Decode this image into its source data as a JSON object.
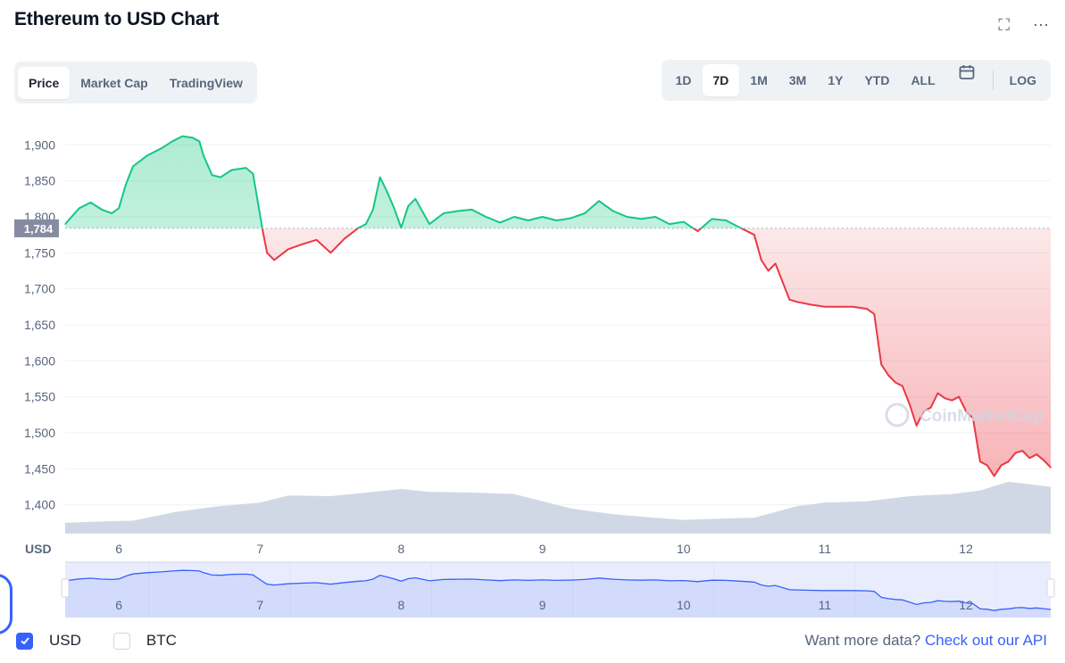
{
  "header": {
    "title": "Ethereum to USD Chart",
    "expand_icon": "expand-icon",
    "more_icon": "more-icon"
  },
  "tabs": [
    "Price",
    "Market Cap",
    "TradingView"
  ],
  "active_tab": "Price",
  "ranges": [
    "1D",
    "7D",
    "1M",
    "3M",
    "1Y",
    "YTD",
    "ALL"
  ],
  "active_range": "7D",
  "calendar_icon": "calendar-icon",
  "log_label": "LOG",
  "chart_data": {
    "type": "line",
    "ylim": [
      1360,
      1945
    ],
    "y_ticks": [
      "1,900",
      "1,850",
      "1,800",
      "1,750",
      "1,700",
      "1,650",
      "1,600",
      "1,550",
      "1,500",
      "1,450",
      "1,400"
    ],
    "y_tick_values": [
      1900,
      1850,
      1800,
      1750,
      1700,
      1650,
      1600,
      1550,
      1500,
      1450,
      1400
    ],
    "x_ticks": [
      "6",
      "7",
      "8",
      "9",
      "10",
      "11",
      "12"
    ],
    "x_tick_values": [
      6,
      7,
      8,
      9,
      10,
      11,
      12
    ],
    "xlim": [
      5.62,
      12.6
    ],
    "axis_currency": "USD",
    "reference_price": 1784,
    "reference_label": "1,784",
    "colors": {
      "up": "#16c784",
      "down": "#ea3943",
      "volume": "#cfd6e4",
      "navigator": "#3861fb"
    },
    "series": [
      {
        "x": [
          5.62,
          5.72,
          5.8,
          5.88,
          5.95,
          6.0,
          6.05,
          6.1,
          6.2,
          6.3,
          6.38,
          6.45,
          6.52,
          6.57,
          6.6,
          6.66,
          6.72,
          6.8,
          6.9,
          6.95,
          7.02,
          7.05,
          7.1,
          7.2,
          7.3,
          7.4,
          7.5,
          7.6,
          7.7,
          7.75,
          7.8,
          7.85,
          7.9,
          7.95,
          8.0,
          8.05,
          8.1,
          8.2,
          8.3,
          8.4,
          8.5,
          8.6,
          8.7,
          8.8,
          8.9,
          9.0,
          9.1,
          9.2,
          9.3,
          9.4,
          9.5,
          9.6,
          9.7,
          9.8,
          9.9,
          10.0,
          10.1,
          10.2,
          10.3,
          10.4,
          10.5,
          10.55,
          10.6,
          10.65,
          10.7,
          10.75,
          10.8,
          10.9,
          11.0,
          11.1,
          11.2,
          11.3,
          11.35,
          11.4,
          11.45,
          11.5,
          11.55,
          11.6,
          11.65,
          11.7,
          11.75,
          11.8,
          11.85,
          11.9,
          11.95,
          12.0,
          12.05,
          12.1,
          12.15,
          12.2,
          12.25,
          12.3,
          12.35,
          12.4,
          12.45,
          12.5,
          12.55,
          12.6
        ],
        "y": [
          1790,
          1812,
          1820,
          1810,
          1805,
          1812,
          1845,
          1870,
          1885,
          1895,
          1905,
          1912,
          1910,
          1905,
          1885,
          1858,
          1855,
          1865,
          1868,
          1860,
          1780,
          1750,
          1740,
          1755,
          1762,
          1768,
          1750,
          1770,
          1785,
          1790,
          1810,
          1855,
          1835,
          1812,
          1785,
          1815,
          1825,
          1790,
          1805,
          1808,
          1810,
          1800,
          1792,
          1800,
          1795,
          1800,
          1795,
          1798,
          1805,
          1822,
          1808,
          1800,
          1797,
          1800,
          1790,
          1793,
          1780,
          1797,
          1795,
          1785,
          1775,
          1740,
          1725,
          1735,
          1710,
          1685,
          1682,
          1678,
          1675,
          1675,
          1675,
          1672,
          1665,
          1595,
          1580,
          1570,
          1565,
          1540,
          1510,
          1530,
          1535,
          1555,
          1548,
          1545,
          1550,
          1530,
          1520,
          1460,
          1455,
          1440,
          1455,
          1460,
          1472,
          1475,
          1465,
          1470,
          1462,
          1452
        ]
      }
    ],
    "volume": {
      "x": [
        5.62,
        5.9,
        6.1,
        6.4,
        6.7,
        7.0,
        7.2,
        7.5,
        7.8,
        8.0,
        8.2,
        8.5,
        8.8,
        9.0,
        9.2,
        9.5,
        9.8,
        10.0,
        10.3,
        10.5,
        10.8,
        11.0,
        11.3,
        11.6,
        11.9,
        12.1,
        12.3,
        12.6
      ],
      "y": [
        1375,
        1377,
        1378,
        1390,
        1398,
        1403,
        1413,
        1412,
        1418,
        1422,
        1418,
        1417,
        1415,
        1405,
        1395,
        1387,
        1382,
        1379,
        1381,
        1382,
        1398,
        1403,
        1405,
        1412,
        1415,
        1420,
        1432,
        1425
      ]
    },
    "navigator_labels": [
      "6",
      "7",
      "8",
      "9",
      "10",
      "11",
      "12"
    ],
    "watermark": "CoinMarketCap"
  },
  "legend": {
    "usd_label": "USD",
    "btc_label": "BTC",
    "usd_checked": true,
    "btc_checked": false
  },
  "footer": {
    "prompt": "Want more data? ",
    "link": "Check out our API"
  }
}
